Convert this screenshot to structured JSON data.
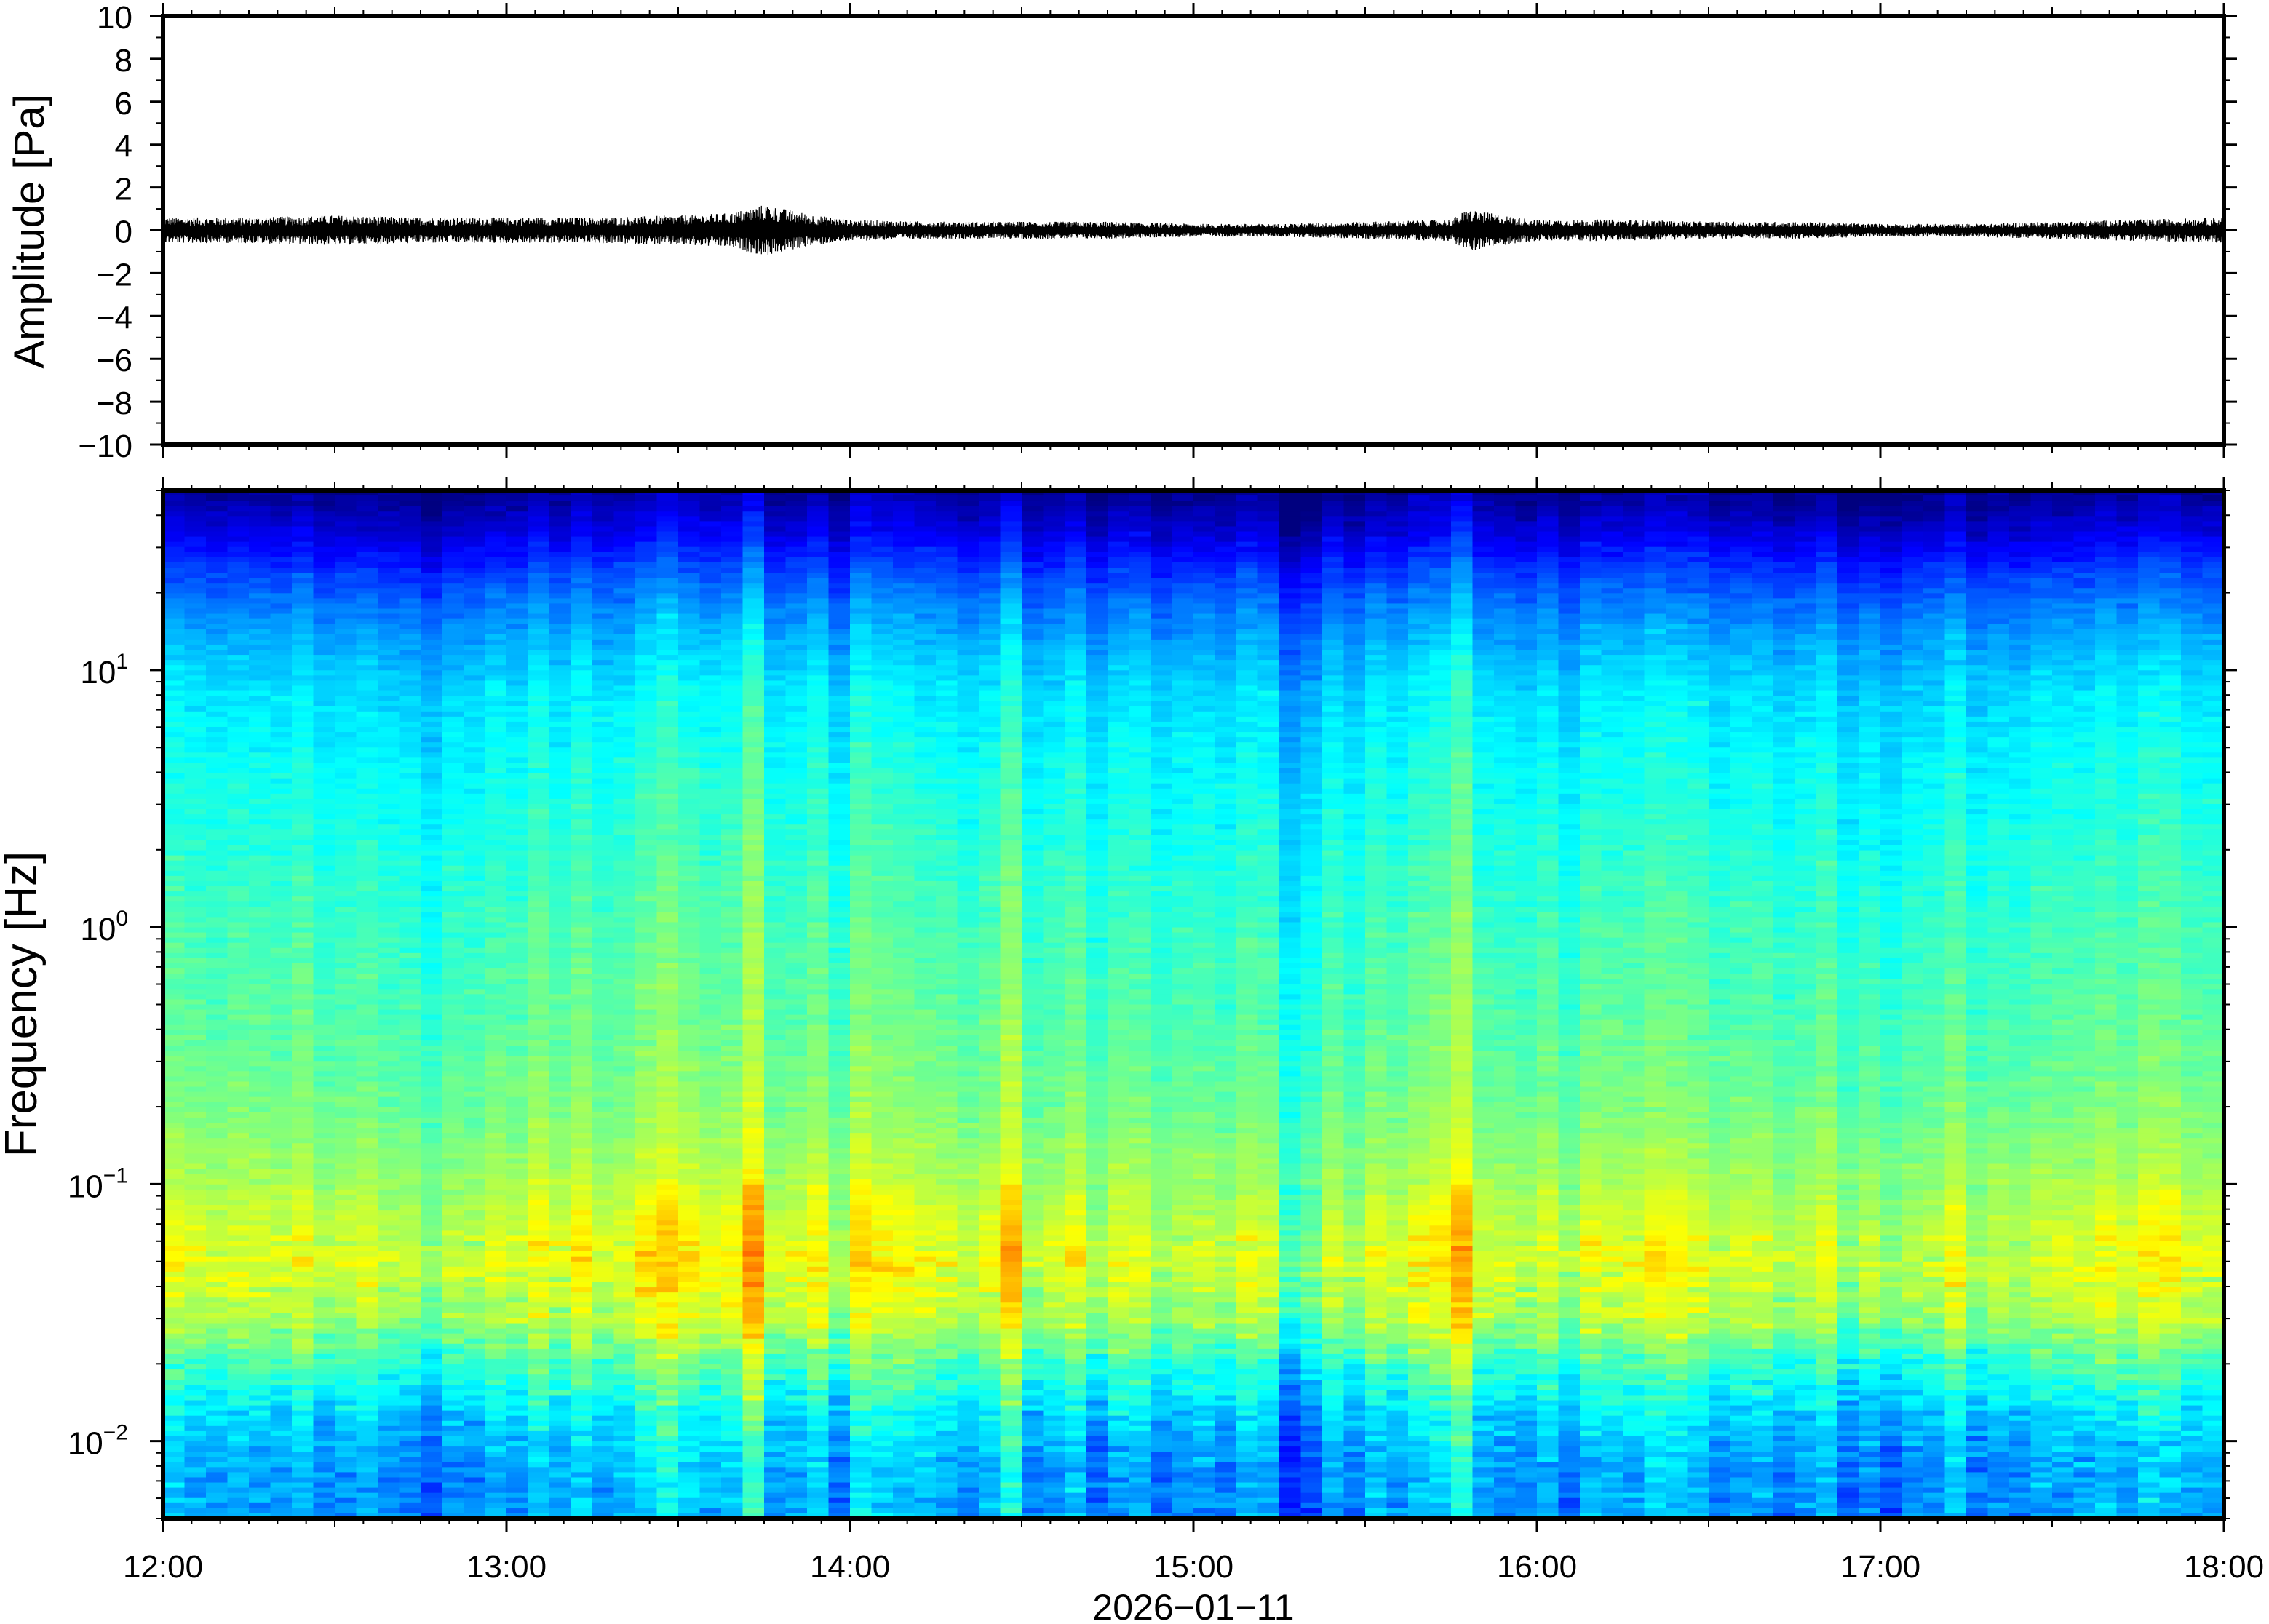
{
  "chart_data": [
    {
      "type": "line",
      "panel": "waveform",
      "ylabel": "Amplitude [Pa]",
      "ylim": [
        -10,
        10
      ],
      "yticks": [
        10,
        8,
        6,
        4,
        2,
        0,
        -2,
        -4,
        -6,
        -8,
        -10
      ],
      "ytick_labels": [
        "10",
        "8",
        "6",
        "4",
        "2",
        "0",
        "−2",
        "−4",
        "−6",
        "−8",
        "−10"
      ],
      "xlim_hours": [
        12,
        18
      ],
      "series": [
        {
          "color": "#000000",
          "hours": [
            12.0,
            12.25,
            12.5,
            12.75,
            13.0,
            13.25,
            13.5,
            13.65,
            13.75,
            13.9,
            14.0,
            14.25,
            14.5,
            14.75,
            15.0,
            15.25,
            15.5,
            15.75,
            15.8,
            15.9,
            16.0,
            16.25,
            16.5,
            16.75,
            17.0,
            17.25,
            17.5,
            17.75,
            18.0
          ],
          "envelope_pa": [
            0.6,
            0.6,
            0.7,
            0.6,
            0.6,
            0.6,
            0.7,
            0.8,
            1.2,
            0.7,
            0.5,
            0.4,
            0.4,
            0.4,
            0.3,
            0.3,
            0.4,
            0.5,
            1.0,
            0.7,
            0.5,
            0.5,
            0.4,
            0.4,
            0.3,
            0.3,
            0.4,
            0.5,
            0.6
          ]
        }
      ]
    },
    {
      "type": "heatmap",
      "panel": "spectrogram",
      "ylabel": "Frequency [Hz]",
      "yscale": "log",
      "ylim_hz": [
        0.005,
        50
      ],
      "yticks_hz": [
        0.01,
        0.1,
        1,
        10
      ],
      "ytick_labels": [
        {
          "base": "10",
          "exp": "−2"
        },
        {
          "base": "10",
          "exp": "−1"
        },
        {
          "base": "10",
          "exp": "0"
        },
        {
          "base": "10",
          "exp": "1"
        }
      ],
      "xlim_hours": [
        12,
        18
      ],
      "colormap": "jet",
      "colormap_stops": [
        "#00007f",
        "#0000ff",
        "#007fff",
        "#00ffff",
        "#7fff7f",
        "#ffff00",
        "#ff7f00",
        "#ff0000"
      ],
      "profile_freq_hz": [
        0.005,
        0.008,
        0.012,
        0.02,
        0.03,
        0.05,
        0.08,
        0.12,
        0.2,
        0.4,
        1,
        2,
        4,
        8,
        12,
        18,
        25,
        35,
        50
      ],
      "profile_level": [
        0.32,
        0.33,
        0.38,
        0.5,
        0.62,
        0.68,
        0.64,
        0.6,
        0.56,
        0.53,
        0.5,
        0.47,
        0.44,
        0.4,
        0.35,
        0.28,
        0.2,
        0.1,
        0.02
      ],
      "column_anomaly": [
        {
          "hours": 13.5,
          "level": 0.05
        },
        {
          "hours": 13.7,
          "level": 0.06
        },
        {
          "hours": 14.1,
          "level": 0.04
        },
        {
          "hours": 15.0,
          "level": -0.04
        },
        {
          "hours": 15.3,
          "level": -0.05
        },
        {
          "hours": 15.8,
          "level": 0.08
        },
        {
          "hours": 16.25,
          "level": 0.04
        },
        {
          "hours": 17.0,
          "level": -0.03
        },
        {
          "hours": 17.5,
          "level": -0.02
        }
      ]
    }
  ],
  "xaxis": {
    "ticks_hours": [
      12,
      13,
      14,
      15,
      16,
      17,
      18
    ],
    "tick_labels": [
      "12:00",
      "13:00",
      "14:00",
      "15:00",
      "16:00",
      "17:00",
      "18:00"
    ],
    "date_label": "2026−01−11"
  }
}
